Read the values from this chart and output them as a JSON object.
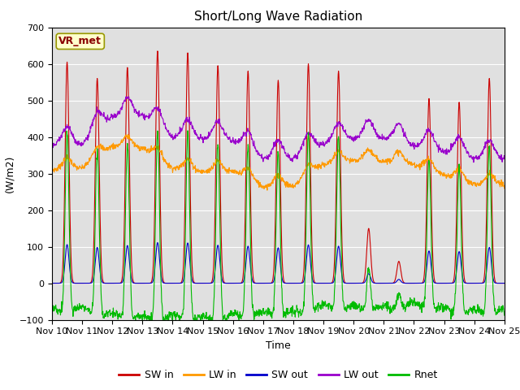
{
  "title": "Short/Long Wave Radiation",
  "xlabel": "Time",
  "ylabel": "(W/m2)",
  "ylim": [
    -100,
    700
  ],
  "xlim": [
    0,
    360
  ],
  "yticks": [
    -100,
    0,
    100,
    200,
    300,
    400,
    500,
    600,
    700
  ],
  "xtick_labels": [
    "Nov 10",
    "Nov 11",
    "Nov 12",
    "Nov 13",
    "Nov 14",
    "Nov 15",
    "Nov 16",
    "Nov 17",
    "Nov 18",
    "Nov 19",
    "Nov 20",
    "Nov 21",
    "Nov 22",
    "Nov 23",
    "Nov 24",
    "Nov 25"
  ],
  "xtick_positions": [
    0,
    24,
    48,
    72,
    96,
    120,
    144,
    168,
    192,
    216,
    240,
    264,
    288,
    312,
    336,
    360
  ],
  "station_label": "VR_met",
  "colors": {
    "SW_in": "#cc0000",
    "LW_in": "#ff9900",
    "SW_out": "#0000cc",
    "LW_out": "#9900cc",
    "Rnet": "#00bb00"
  },
  "legend_labels": [
    "SW in",
    "LW in",
    "SW out",
    "LW out",
    "Rnet"
  ],
  "bg_color": "#e0e0e0",
  "title_fontsize": 11,
  "label_fontsize": 9,
  "tick_fontsize": 8
}
